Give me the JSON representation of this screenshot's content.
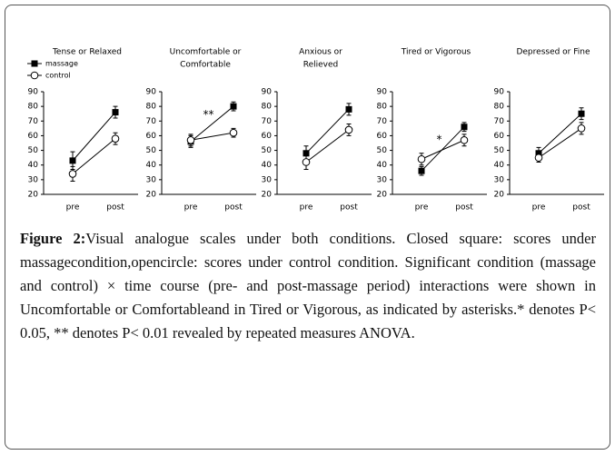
{
  "chart_data": [
    {
      "type": "line",
      "title": [
        "Tense or Relaxed"
      ],
      "categories": [
        "pre",
        "post"
      ],
      "ylim": [
        20,
        90
      ],
      "yticks": [
        20,
        30,
        40,
        50,
        60,
        70,
        80,
        90
      ],
      "legend": "top-left",
      "series": [
        {
          "name": "massage",
          "color": "#000000",
          "marker": "square",
          "values": [
            43,
            76
          ],
          "errors": [
            6,
            4
          ]
        },
        {
          "name": "control",
          "color": "#000000",
          "marker": "circle-open",
          "values": [
            34,
            58
          ],
          "errors": [
            5,
            4
          ]
        }
      ]
    },
    {
      "type": "line",
      "title": [
        "Uncomfortable or",
        "Comfortable"
      ],
      "categories": [
        "pre",
        "post"
      ],
      "ylim": [
        20,
        90
      ],
      "yticks": [
        20,
        30,
        40,
        50,
        60,
        70,
        80,
        90
      ],
      "annotation": "**",
      "series": [
        {
          "color": "#000000",
          "marker": "square",
          "values": [
            56,
            80
          ],
          "errors": [
            4,
            3
          ]
        },
        {
          "color": "#000000",
          "marker": "circle-open",
          "values": [
            57,
            62
          ],
          "errors": [
            4,
            3
          ]
        }
      ]
    },
    {
      "type": "line",
      "title": [
        "Anxious or",
        "Relieved"
      ],
      "categories": [
        "pre",
        "post"
      ],
      "ylim": [
        20,
        90
      ],
      "yticks": [
        20,
        30,
        40,
        50,
        60,
        70,
        80,
        90
      ],
      "series": [
        {
          "color": "#000000",
          "marker": "square",
          "values": [
            48,
            78
          ],
          "errors": [
            5,
            4
          ]
        },
        {
          "color": "#000000",
          "marker": "circle-open",
          "values": [
            42,
            64
          ],
          "errors": [
            5,
            4
          ]
        }
      ]
    },
    {
      "type": "line",
      "title": [
        "Tired or Vigorous"
      ],
      "categories": [
        "pre",
        "post"
      ],
      "ylim": [
        20,
        90
      ],
      "yticks": [
        20,
        30,
        40,
        50,
        60,
        70,
        80,
        90
      ],
      "annotation": "*",
      "series": [
        {
          "color": "#000000",
          "marker": "square",
          "values": [
            36,
            66
          ],
          "errors": [
            3,
            3
          ]
        },
        {
          "color": "#000000",
          "marker": "circle-open",
          "values": [
            44,
            57
          ],
          "errors": [
            4,
            4
          ]
        }
      ]
    },
    {
      "type": "line",
      "title": [
        "Depressed or Fine"
      ],
      "categories": [
        "pre",
        "post"
      ],
      "ylim": [
        20,
        90
      ],
      "yticks": [
        20,
        30,
        40,
        50,
        60,
        70,
        80,
        90
      ],
      "series": [
        {
          "color": "#000000",
          "marker": "square",
          "values": [
            48,
            75
          ],
          "errors": [
            4,
            4
          ]
        },
        {
          "color": "#000000",
          "marker": "circle-open",
          "values": [
            45,
            65
          ],
          "errors": [
            3,
            4
          ]
        }
      ]
    }
  ],
  "caption": {
    "label": "Figure 2:",
    "text": "Visual analogue scales under both conditions. Closed square: scores under massagecondition,opencircle: scores under control condition. Significant condition (massage and control) × time course (pre- and post-massage period) interactions were shown in Uncomfortable or Comfortableand in Tired or Vigorous, as indicated by asterisks.* denotes P< 0.05, ** denotes P< 0.01 revealed by repeated measures ANOVA."
  }
}
